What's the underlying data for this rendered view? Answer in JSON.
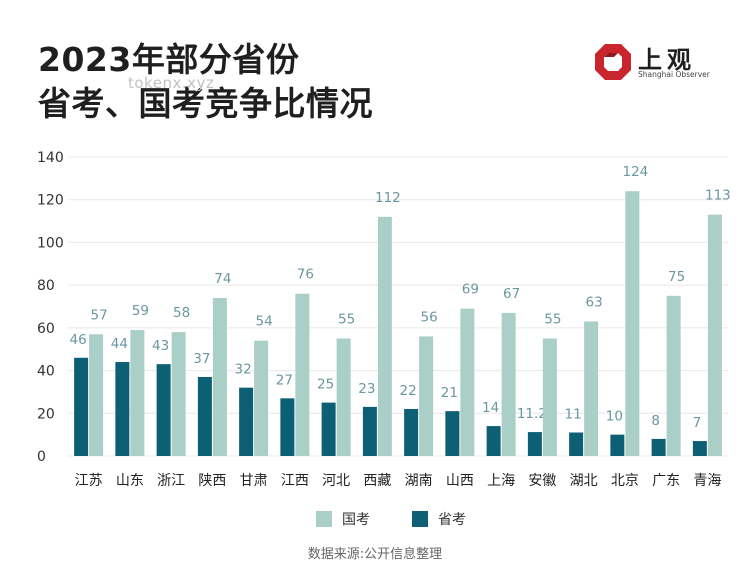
{
  "header": {
    "title_line1": "2023年部分省份",
    "title_line2": "省考、国考竞争比情况",
    "watermark": "tokenx.xyz"
  },
  "logo": {
    "name": "上观",
    "subtitle": "Shanghai Observer",
    "color": "#c8252c"
  },
  "legend": {
    "guokao_label": "国考",
    "shengkao_label": "省考"
  },
  "source": "数据来源:公开信息整理",
  "colors": {
    "guokao": "#a9cfc7",
    "shengkao": "#0d5f73",
    "label": "#6a97a0",
    "grid": "#e8e8e8"
  },
  "chart_data": {
    "type": "bar",
    "categories": [
      "江苏",
      "山东",
      "浙江",
      "陕西",
      "甘肃",
      "江西",
      "河北",
      "西藏",
      "湖南",
      "山西",
      "上海",
      "安徽",
      "湖北",
      "北京",
      "广东",
      "青海"
    ],
    "series": [
      {
        "name": "省考",
        "values": [
          46,
          44,
          43,
          37,
          32,
          27,
          25,
          23,
          22,
          21,
          14,
          11.2,
          11,
          10,
          8,
          7
        ]
      },
      {
        "name": "国考",
        "values": [
          57,
          59,
          58,
          74,
          54,
          76,
          55,
          112,
          56,
          69,
          67,
          55,
          63,
          124,
          75,
          113
        ]
      }
    ],
    "ylim": [
      0,
      140
    ],
    "yticks": [
      0,
      20,
      40,
      60,
      80,
      100,
      120,
      140
    ],
    "grid": true,
    "legend_position": "bottom"
  }
}
